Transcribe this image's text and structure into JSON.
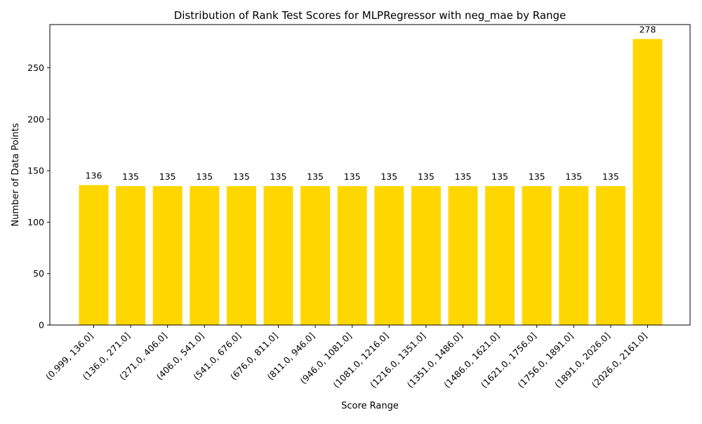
{
  "chart_data": {
    "type": "bar",
    "title": "Distribution of Rank Test Scores for MLPRegressor with neg_mae by Range",
    "xlabel": "Score Range",
    "ylabel": "Number of Data Points",
    "categories": [
      "(0.999, 136.0]",
      "(136.0, 271.0]",
      "(271.0, 406.0]",
      "(406.0, 541.0]",
      "(541.0, 676.0]",
      "(676.0, 811.0]",
      "(811.0, 946.0]",
      "(946.0, 1081.0]",
      "(1081.0, 1216.0]",
      "(1216.0, 1351.0]",
      "(1351.0, 1486.0]",
      "(1486.0, 1621.0]",
      "(1621.0, 1756.0]",
      "(1756.0, 1891.0]",
      "(1891.0, 2026.0]",
      "(2026.0, 2161.0]"
    ],
    "values": [
      136,
      135,
      135,
      135,
      135,
      135,
      135,
      135,
      135,
      135,
      135,
      135,
      135,
      135,
      135,
      278
    ],
    "ylim": [
      0,
      292
    ],
    "yticks": [
      0,
      50,
      100,
      150,
      200,
      250
    ],
    "bar_color": "#ffd700",
    "grid": false,
    "legend": "none"
  }
}
